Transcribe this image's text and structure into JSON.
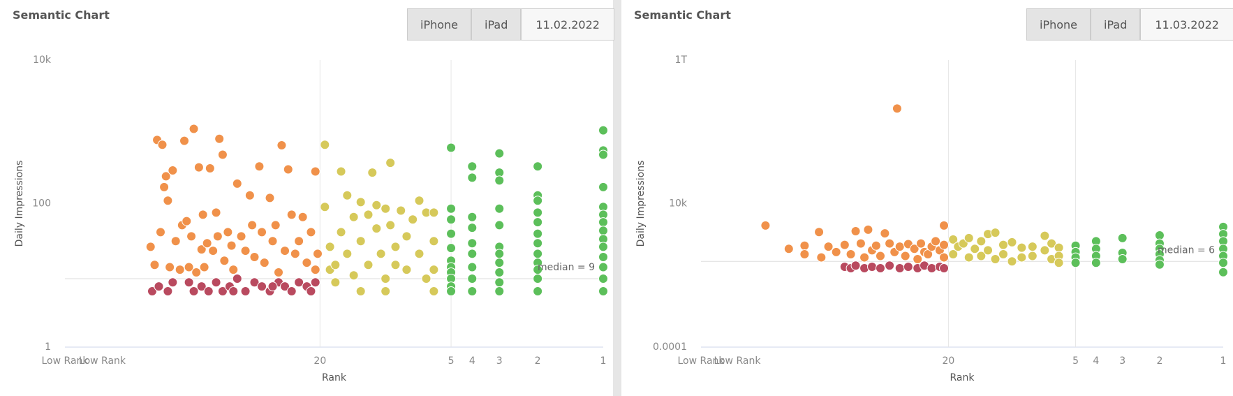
{
  "chart_data": [
    {
      "type": "scatter",
      "title": "Semantic Chart",
      "toggle": [
        "iPhone",
        "iPad"
      ],
      "date": "11.02.2022",
      "x_label": "Rank",
      "y_label": "Daily Impressions",
      "log_x": true,
      "log_y": true,
      "xlim": [
        297,
        1
      ],
      "xticks": [
        {
          "value": 297,
          "label": "Low Rank"
        },
        {
          "value": 200,
          "label": "Low Rank"
        },
        20,
        5,
        4,
        3,
        2,
        1
      ],
      "xgrid": [
        20,
        5
      ],
      "ylim": [
        1,
        10000
      ],
      "yticks": [
        1,
        100,
        {
          "value": 10000,
          "label": "10k"
        }
      ],
      "median": {
        "value": 9,
        "label": "median = 9"
      },
      "series": [
        {
          "color": "#b94a5f",
          "x": [
            118,
            110,
            100,
            95,
            80,
            76,
            70,
            65,
            60,
            56,
            52,
            48,
            44,
            40,
            37,
            34,
            31,
            29,
            27,
            25,
            23,
            22,
            21,
            50,
            33
          ],
          "values": [
            6,
            7,
            6,
            8,
            8,
            6,
            7,
            6,
            8,
            6,
            7,
            9,
            6,
            8,
            7,
            6,
            8,
            7,
            6,
            8,
            7,
            6,
            8,
            6,
            7
          ]
        },
        {
          "color": "#f0914a",
          "x": [
            120,
            115,
            112,
            108,
            106,
            104,
            102,
            100,
            98,
            95,
            92,
            88,
            86,
            84,
            82,
            80,
            78,
            76,
            74,
            72,
            70,
            69,
            68,
            66,
            64,
            62,
            60,
            59,
            58,
            56,
            55,
            53,
            51,
            50,
            48,
            46,
            44,
            42,
            41,
            40,
            38,
            37,
            36,
            34,
            33,
            32,
            31,
            30,
            29,
            28,
            27,
            26,
            25,
            24,
            23,
            22,
            21,
            21,
            20.5
          ],
          "values": [
            25,
            14,
            770,
            40,
            660,
            170,
            240,
            110,
            13,
            290,
            30,
            12,
            50,
            750,
            57,
            13,
            35,
            1100,
            11,
            320,
            23,
            70,
            13,
            28,
            310,
            22,
            75,
            35,
            800,
            480,
            16,
            40,
            26,
            12,
            190,
            35,
            22,
            130,
            50,
            18,
            330,
            40,
            15,
            120,
            30,
            50,
            11,
            650,
            22,
            300,
            70,
            20,
            30,
            65,
            15,
            40,
            280,
            12,
            20
          ]
        },
        {
          "color": "#d6c95a",
          "x": [
            19,
            19,
            18,
            18,
            17,
            16,
            16,
            15,
            15,
            14,
            14,
            13,
            13,
            12,
            12,
            11.5,
            11,
            11,
            10.5,
            10,
            10,
            9.5,
            9.5,
            9,
            8.5,
            8,
            8,
            7.5,
            7,
            7,
            6.5,
            6.5,
            6,
            6,
            6,
            6,
            17,
            13,
            10,
            9
          ],
          "values": [
            90,
            660,
            25,
            12,
            8,
            280,
            40,
            130,
            20,
            65,
            10,
            105,
            30,
            70,
            14,
            270,
            95,
            45,
            20,
            85,
            9,
            370,
            50,
            25,
            80,
            35,
            12,
            60,
            110,
            20,
            75,
            9,
            75,
            30,
            12,
            6,
            14,
            6,
            6,
            14
          ]
        },
        {
          "color": "#5cbf5a",
          "x": [
            5,
            5,
            5,
            5,
            5,
            5,
            5,
            5,
            5,
            5,
            5,
            4,
            4,
            4,
            4,
            4,
            4,
            4,
            4,
            4,
            3,
            3,
            3,
            3,
            3,
            3,
            3,
            3,
            3,
            3,
            3,
            2,
            2,
            2,
            2,
            2,
            2,
            2,
            2,
            2,
            2,
            2,
            2,
            1,
            1,
            1,
            1,
            1,
            1,
            1,
            1,
            1,
            1,
            1,
            1,
            1,
            1
          ],
          "values": [
            600,
            85,
            60,
            38,
            24,
            16,
            13,
            11,
            9,
            7,
            6,
            330,
            230,
            65,
            46,
            28,
            20,
            13,
            9,
            6,
            500,
            270,
            210,
            85,
            50,
            25,
            20,
            15,
            11,
            8,
            6,
            330,
            130,
            110,
            75,
            55,
            38,
            28,
            20,
            15,
            12,
            9,
            6,
            1050,
            550,
            480,
            170,
            90,
            70,
            55,
            42,
            32,
            25,
            18,
            13,
            9,
            6
          ]
        }
      ]
    },
    {
      "type": "scatter",
      "title": "Semantic Chart",
      "toggle": [
        "iPhone",
        "iPad"
      ],
      "date": "11.03.2022",
      "x_label": "Rank",
      "y_label": "Daily Impressions",
      "log_x": true,
      "log_y": true,
      "xlim": [
        297,
        1
      ],
      "xticks": [
        {
          "value": 297,
          "label": "Low Rank"
        },
        {
          "value": 200,
          "label": "Low Rank"
        },
        20,
        5,
        4,
        3,
        2,
        1
      ],
      "xgrid": [
        20,
        5
      ],
      "ylim": [
        0.0001,
        1000000000000
      ],
      "yticks": [
        0.0001,
        {
          "value": 10000,
          "label": "10k"
        },
        {
          "value": 1000000000000,
          "label": "1T"
        }
      ],
      "median": {
        "value": 6,
        "label": "median = 6"
      },
      "series": [
        {
          "color": "#b94a5f",
          "x": [
            62,
            58,
            55,
            50,
            46,
            42,
            38,
            34,
            31,
            28,
            26,
            24,
            22,
            21
          ],
          "values": [
            3,
            2.5,
            3.5,
            2.5,
            3,
            2.5,
            3.5,
            2.5,
            3,
            2.5,
            3.5,
            2.5,
            3,
            2.5
          ]
        },
        {
          "color": "#f0914a",
          "x": [
            147,
            114,
            96,
            96,
            82,
            80,
            74,
            68,
            62,
            58,
            55,
            52,
            50,
            48,
            46,
            44,
            42,
            40,
            38,
            36,
            35,
            34,
            32,
            31,
            29,
            28,
            27,
            26,
            25,
            24,
            23,
            22,
            21,
            21,
            21
          ],
          "values": [
            600,
            30,
            45,
            15,
            260,
            10,
            40,
            20,
            50,
            15,
            290,
            60,
            10,
            350,
            25,
            45,
            12,
            220,
            60,
            20,
            2000000000,
            40,
            12,
            55,
            30,
            8,
            60,
            20,
            15,
            40,
            80,
            25,
            600,
            10,
            50
          ]
        },
        {
          "color": "#d6c95a",
          "x": [
            19,
            19,
            18,
            17,
            16,
            16,
            15,
            14,
            14,
            13,
            13,
            12,
            12,
            11,
            11,
            10,
            10,
            9,
            9,
            8,
            8,
            7,
            7,
            6.5,
            6.5,
            6,
            6,
            6
          ],
          "values": [
            100,
            15,
            40,
            60,
            10,
            120,
            30,
            80,
            12,
            200,
            25,
            240,
            8,
            50,
            15,
            70,
            6,
            35,
            10,
            40,
            12,
            160,
            25,
            60,
            8,
            35,
            12,
            5
          ]
        },
        {
          "color": "#5cbf5a",
          "x": [
            5,
            5,
            5,
            5,
            4,
            4,
            4,
            4,
            3,
            3,
            3,
            2,
            2,
            2,
            2,
            2,
            2,
            1,
            1,
            1,
            1,
            1,
            1,
            1
          ],
          "values": [
            45,
            20,
            10,
            5,
            80,
            30,
            12,
            5,
            120,
            18,
            8,
            170,
            60,
            30,
            15,
            7,
            4,
            500,
            200,
            80,
            30,
            12,
            5,
            1.5
          ]
        }
      ]
    }
  ]
}
